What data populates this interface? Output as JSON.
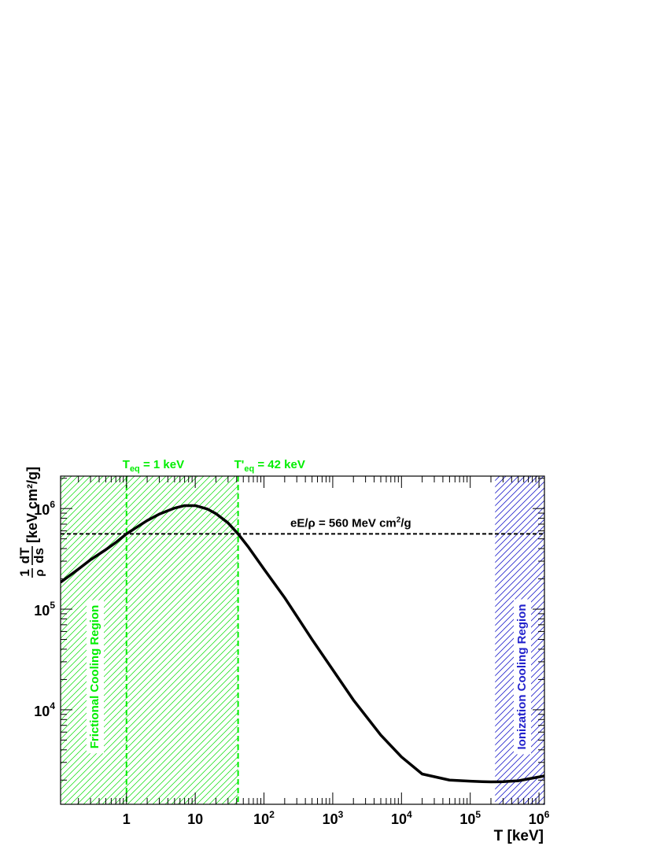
{
  "chart_data": {
    "type": "line",
    "title": "",
    "xlabel": "T [keV]",
    "ylabel": {
      "fraction_num": "1",
      "fraction_den": "ρ",
      "deriv_num": "dT",
      "deriv_den": "ds",
      "units": "[keV cm²/g]"
    },
    "x_scale": "log",
    "y_scale": "log",
    "xlim": [
      0.11,
      1200000
    ],
    "ylim": [
      1150,
      2100000
    ],
    "x_ticks": [
      {
        "value": 1,
        "label": "1"
      },
      {
        "value": 10,
        "label": "10"
      },
      {
        "value": 100,
        "base": "10",
        "exp": "2"
      },
      {
        "value": 1000,
        "base": "10",
        "exp": "3"
      },
      {
        "value": 10000,
        "base": "10",
        "exp": "4"
      },
      {
        "value": 100000,
        "base": "10",
        "exp": "5"
      },
      {
        "value": 1000000,
        "base": "10",
        "exp": "6"
      }
    ],
    "y_ticks": [
      {
        "value": 10000,
        "base": "10",
        "exp": "4"
      },
      {
        "value": 100000,
        "base": "10",
        "exp": "5"
      },
      {
        "value": 1000000,
        "base": "10",
        "exp": "6"
      }
    ],
    "grid": false,
    "series": [
      {
        "color": "#000000",
        "x": [
          0.11,
          0.2,
          0.3,
          0.5,
          0.7,
          1,
          1.5,
          2,
          3,
          5,
          7,
          10,
          15,
          20,
          30,
          42,
          60,
          100,
          200,
          500,
          1000,
          2000,
          5000,
          10000,
          20000,
          50000,
          100000,
          150000,
          200000,
          300000,
          500000,
          1000000,
          1200000
        ],
        "y": [
          185000,
          250000,
          310000,
          390000,
          460000,
          560000,
          670000,
          760000,
          880000,
          1010000,
          1070000,
          1070000,
          990000,
          890000,
          720000,
          560000,
          410000,
          250000,
          130000,
          50000,
          25000,
          12500,
          5600,
          3400,
          2300,
          2000,
          1950,
          1930,
          1920,
          1930,
          1970,
          2150,
          2200
        ]
      }
    ],
    "annotations": {
      "teq_line": {
        "x": 1,
        "label_main": "T",
        "label_sub": "eq",
        "label_rest": " = 1 keV",
        "color": "#00ee00"
      },
      "teq_prime_line": {
        "x": 42,
        "label_main": "T'",
        "label_sub": "eq",
        "label_rest": " = 42 keV",
        "color": "#00ee00"
      },
      "field_line": {
        "y": 560000,
        "label_main": "eE/ρ = 560 MeV cm",
        "label_sup": "2",
        "label_rest": "/g",
        "color": "#000000"
      },
      "frictional_region": {
        "x_from": 0.11,
        "x_to": 42,
        "label": "Frictional Cooling Region",
        "color": "#00ee00"
      },
      "ionization_region": {
        "x_from": 230000,
        "x_to": 1200000,
        "label": "Ionization Cooling Region",
        "color": "#2222cc"
      }
    }
  }
}
